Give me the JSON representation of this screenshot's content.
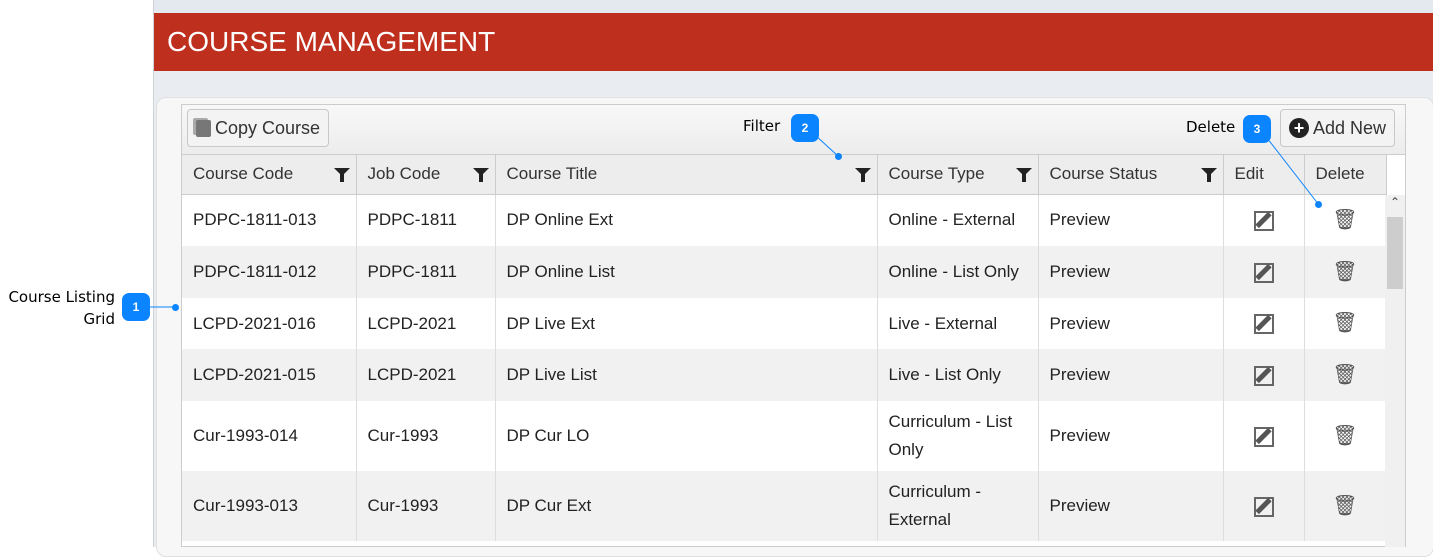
{
  "header": {
    "title": "COURSE MANAGEMENT"
  },
  "toolbar": {
    "copy_label": "Copy Course",
    "add_label": "Add New"
  },
  "columns": [
    "Course Code",
    "Job Code",
    "Course Title",
    "Course Type",
    "Course Status",
    "Edit",
    "Delete"
  ],
  "rows": [
    [
      "PDPC-1811-013",
      "PDPC-1811",
      "DP Online Ext",
      "Online - External",
      "Preview"
    ],
    [
      "PDPC-1811-012",
      "PDPC-1811",
      "DP Online List",
      "Online - List Only",
      "Preview"
    ],
    [
      "LCPD-2021-016",
      "LCPD-2021",
      "DP Live Ext",
      "Live - External",
      "Preview"
    ],
    [
      "LCPD-2021-015",
      "LCPD-2021",
      "DP Live List",
      "Live - List Only",
      "Preview"
    ],
    [
      "Cur-1993-014",
      "Cur-1993",
      "DP Cur LO",
      "Curriculum - List Only",
      "Preview"
    ],
    [
      "Cur-1993-013",
      "Cur-1993",
      "DP Cur Ext",
      "Curriculum - External",
      "Preview"
    ]
  ],
  "annotations": {
    "a1": {
      "number": "1",
      "label": "Course Listing Grid"
    },
    "a2": {
      "number": "2",
      "label": "Filter"
    },
    "a3": {
      "number": "3",
      "label": "Delete"
    }
  },
  "colors": {
    "header": "#be2f1e",
    "badge": "#0a84ff"
  }
}
